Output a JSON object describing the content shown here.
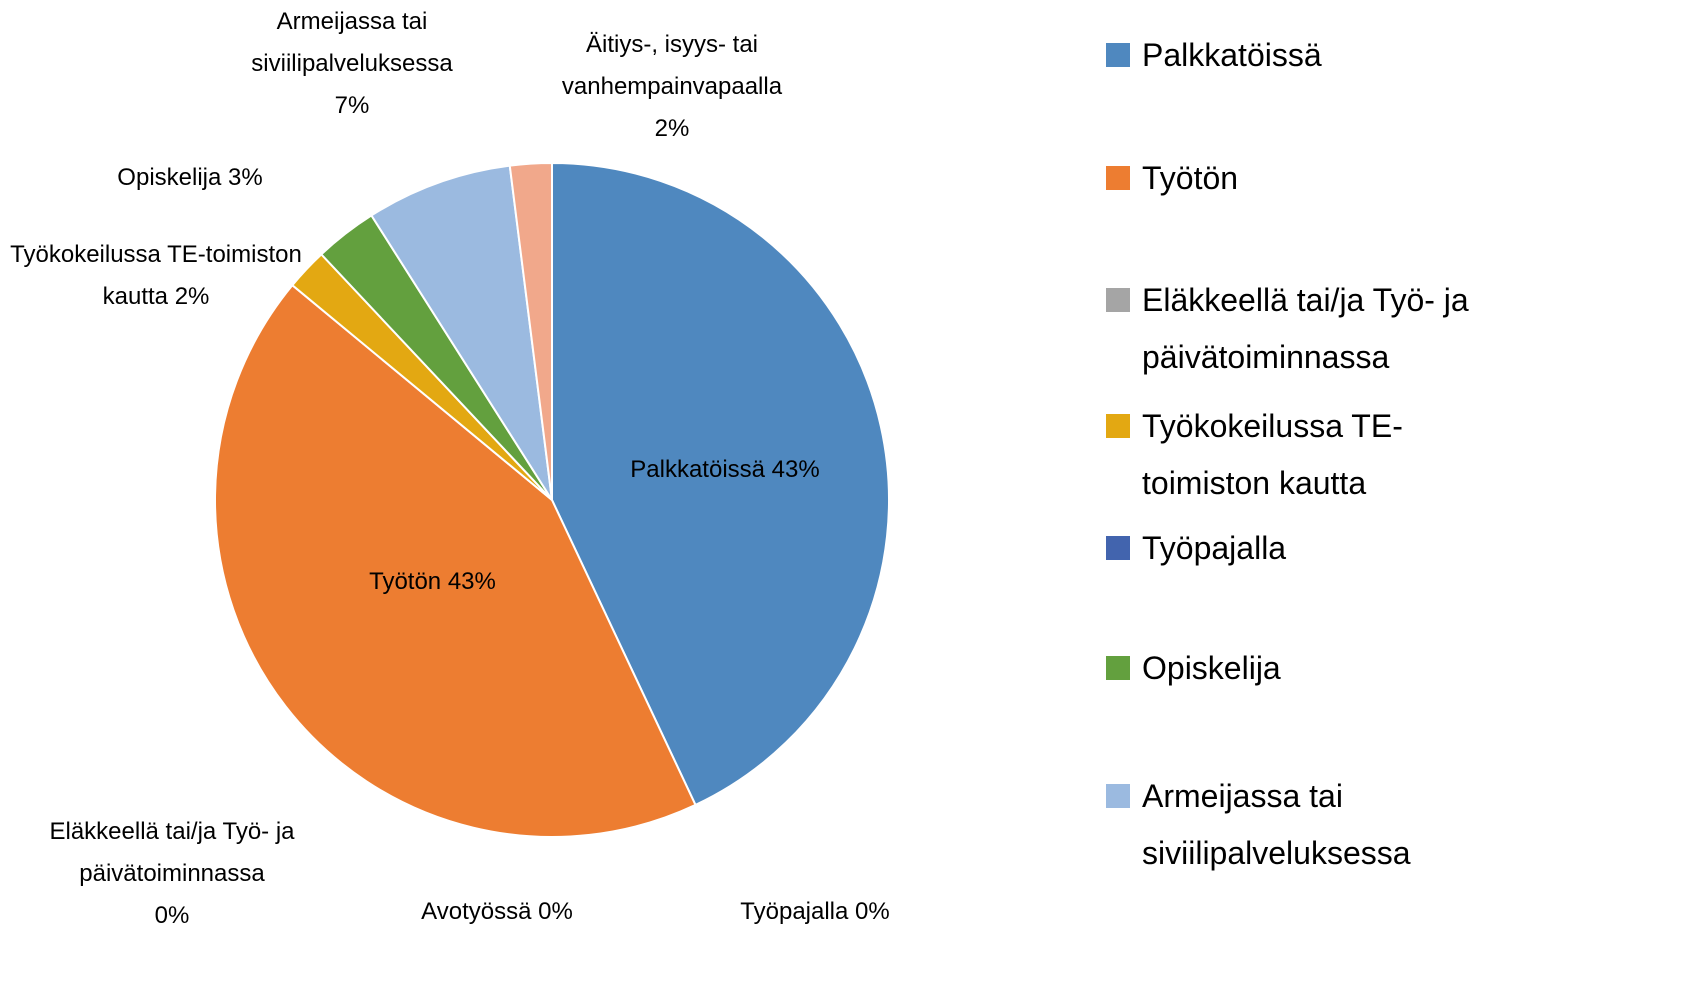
{
  "chart_data": {
    "type": "pie",
    "categories": [
      "Palkkatöissä",
      "Työtön",
      "Eläkkeellä tai/ja Työ- ja päivätoiminnassa",
      "Työkokeilussa TE-toimiston kautta",
      "Työpajalla",
      "Opiskelija",
      "Armeijassa tai siviilipalveluksessa",
      "Avotyössä",
      "Äitiys-, isyys- tai vanhempainvapaalla"
    ],
    "values": [
      43,
      43,
      0,
      2,
      0,
      3,
      7,
      0,
      2
    ],
    "value_labels": [
      "43%",
      "43%",
      "0%",
      "2%",
      "0%",
      "3%",
      "7%",
      "0%",
      "2%"
    ],
    "colors": [
      "#4f88bf",
      "#ed7d31",
      "#a5a5a5",
      "#e3a812",
      "#4264ae",
      "#63a03e",
      "#9bbae0",
      "#2e5a8a",
      "#f1a88b"
    ],
    "legend": "right"
  }
}
